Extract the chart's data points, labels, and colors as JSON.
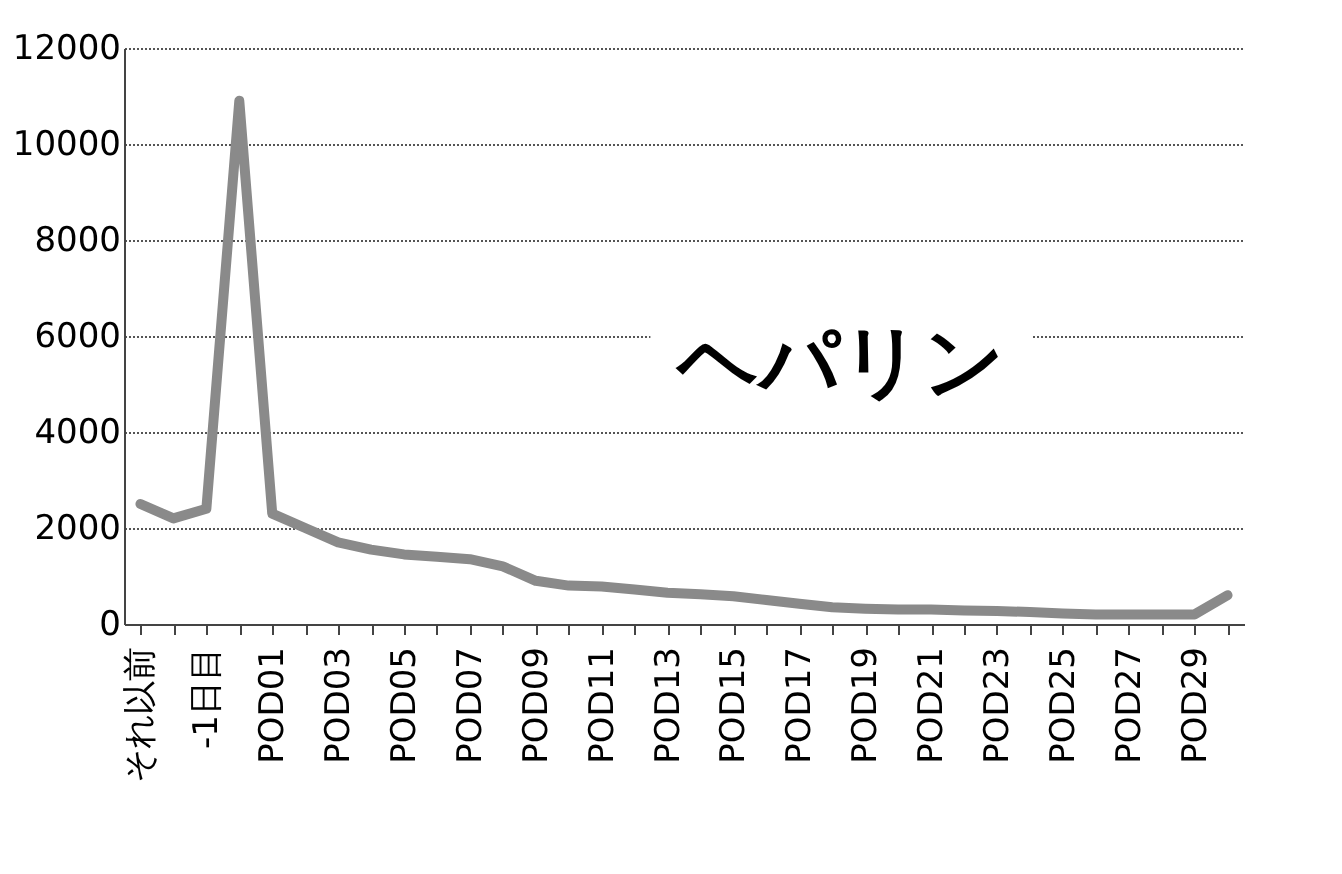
{
  "chart_data": {
    "type": "line",
    "categories": [
      "それ以前",
      null,
      "-1日目",
      null,
      "POD01",
      null,
      "POD03",
      null,
      "POD05",
      null,
      "POD07",
      null,
      "POD09",
      null,
      "POD11",
      null,
      "POD13",
      null,
      "POD15",
      null,
      "POD17",
      null,
      "POD19",
      null,
      "POD21",
      null,
      "POD23",
      null,
      "POD25",
      null,
      "POD27",
      null,
      "POD29",
      null
    ],
    "series": [
      {
        "color": "#8a8a8a",
        "values": [
          2500,
          2200,
          2400,
          10900,
          2300,
          2000,
          1700,
          1550,
          1450,
          1400,
          1350,
          1200,
          900,
          800,
          780,
          720,
          650,
          620,
          580,
          500,
          420,
          350,
          320,
          300,
          300,
          280,
          270,
          250,
          220,
          200,
          200,
          200,
          200,
          600
        ]
      }
    ],
    "ylim": [
      0,
      12000
    ],
    "yticks": [
      0,
      2000,
      4000,
      6000,
      8000,
      10000,
      12000
    ],
    "grid": "y",
    "marker": "none",
    "line_style": "solid",
    "annotations": [
      "ヘパリン"
    ]
  }
}
